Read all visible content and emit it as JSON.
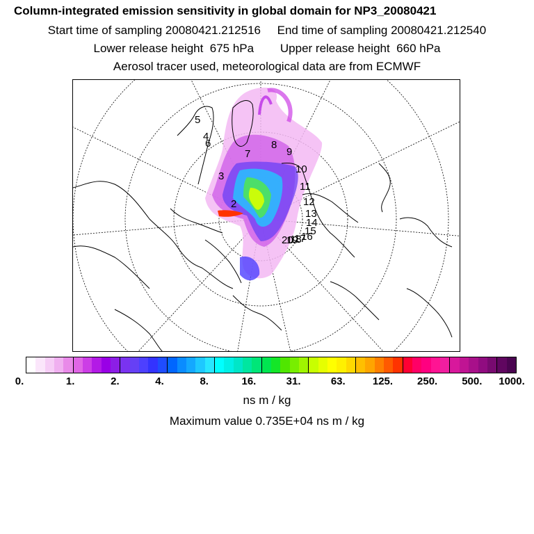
{
  "titles": {
    "line1": "Column-integrated emission sensitivity in global domain for NP3_20080421",
    "line2": "Start time of sampling 20080421.212516     End time of sampling 20080421.212540",
    "line3": "Lower release height  675 hPa        Upper release height  660 hPa",
    "line4": "Aerosol tracer used, meteorological data are from ECMWF"
  },
  "colorbar": {
    "labels": [
      "0.",
      "1.",
      "2.",
      "4.",
      "8.",
      "16.",
      "31.",
      "63.",
      "125.",
      "250.",
      "500.",
      "1000."
    ],
    "colors": [
      "#ffffff",
      "#fbe6fb",
      "#f6cdf6",
      "#f0b0f0",
      "#e98ae9",
      "#e066e6",
      "#cc3ee6",
      "#b31ae6",
      "#9900e6",
      "#8c1ee6",
      "#7a33f0",
      "#6640f5",
      "#4d40ff",
      "#3333ff",
      "#1f4dff",
      "#0066ff",
      "#0a8cff",
      "#14a8ff",
      "#1ec8ff",
      "#28e6ff",
      "#00ffff",
      "#00f0e6",
      "#00e6c8",
      "#00e6a0",
      "#00e678",
      "#00e650",
      "#14e628",
      "#50e600",
      "#78ee00",
      "#a0f500",
      "#c8ff00",
      "#e6ff00",
      "#ffff00",
      "#fff000",
      "#ffd900",
      "#ffbf00",
      "#ffa500",
      "#ff8000",
      "#ff5a00",
      "#ff3300",
      "#ff0033",
      "#ff0066",
      "#ff0080",
      "#ff1493",
      "#f01ea0",
      "#d8189c",
      "#c01493",
      "#a8108a",
      "#900c80",
      "#780a70",
      "#600660",
      "#4a0450"
    ]
  },
  "unit": "ns m / kg",
  "max_value": "Maximum value  0.735E+04 ns m / kg",
  "points": [
    "2",
    "3",
    "4",
    "5",
    "6",
    "7",
    "8",
    "9",
    "10",
    "11",
    "12",
    "13",
    "14",
    "15",
    "16",
    "17",
    "18",
    "19",
    "20"
  ],
  "colors": {
    "coastline": "#000000",
    "grid": "#000000"
  }
}
